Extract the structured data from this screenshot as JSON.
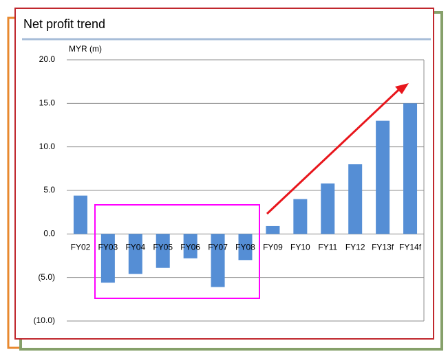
{
  "chart_data": {
    "type": "bar",
    "title": "Net profit trend",
    "y_axis_label": "MYR (m)",
    "categories": [
      "FY02",
      "FY03",
      "FY04",
      "FY05",
      "FY06",
      "FY07",
      "FY08",
      "FY09",
      "FY10",
      "FY11",
      "FY12",
      "FY13f",
      "FY14f"
    ],
    "values": [
      4.4,
      -5.6,
      -4.6,
      -3.9,
      -2.8,
      -6.1,
      -3.0,
      0.9,
      4.0,
      5.8,
      8.0,
      13.0,
      15.0
    ],
    "color": "#558ed5",
    "ylim": [
      -10,
      20
    ],
    "yticks": [
      {
        "value": -10,
        "label": "(10.0)"
      },
      {
        "value": -5,
        "label": "(5.0)"
      },
      {
        "value": 0,
        "label": "0.0"
      },
      {
        "value": 5,
        "label": "5.0"
      },
      {
        "value": 10,
        "label": "10.0"
      },
      {
        "value": 15,
        "label": "15.0"
      },
      {
        "value": 20,
        "label": "20.0"
      }
    ],
    "grid": true
  }
}
